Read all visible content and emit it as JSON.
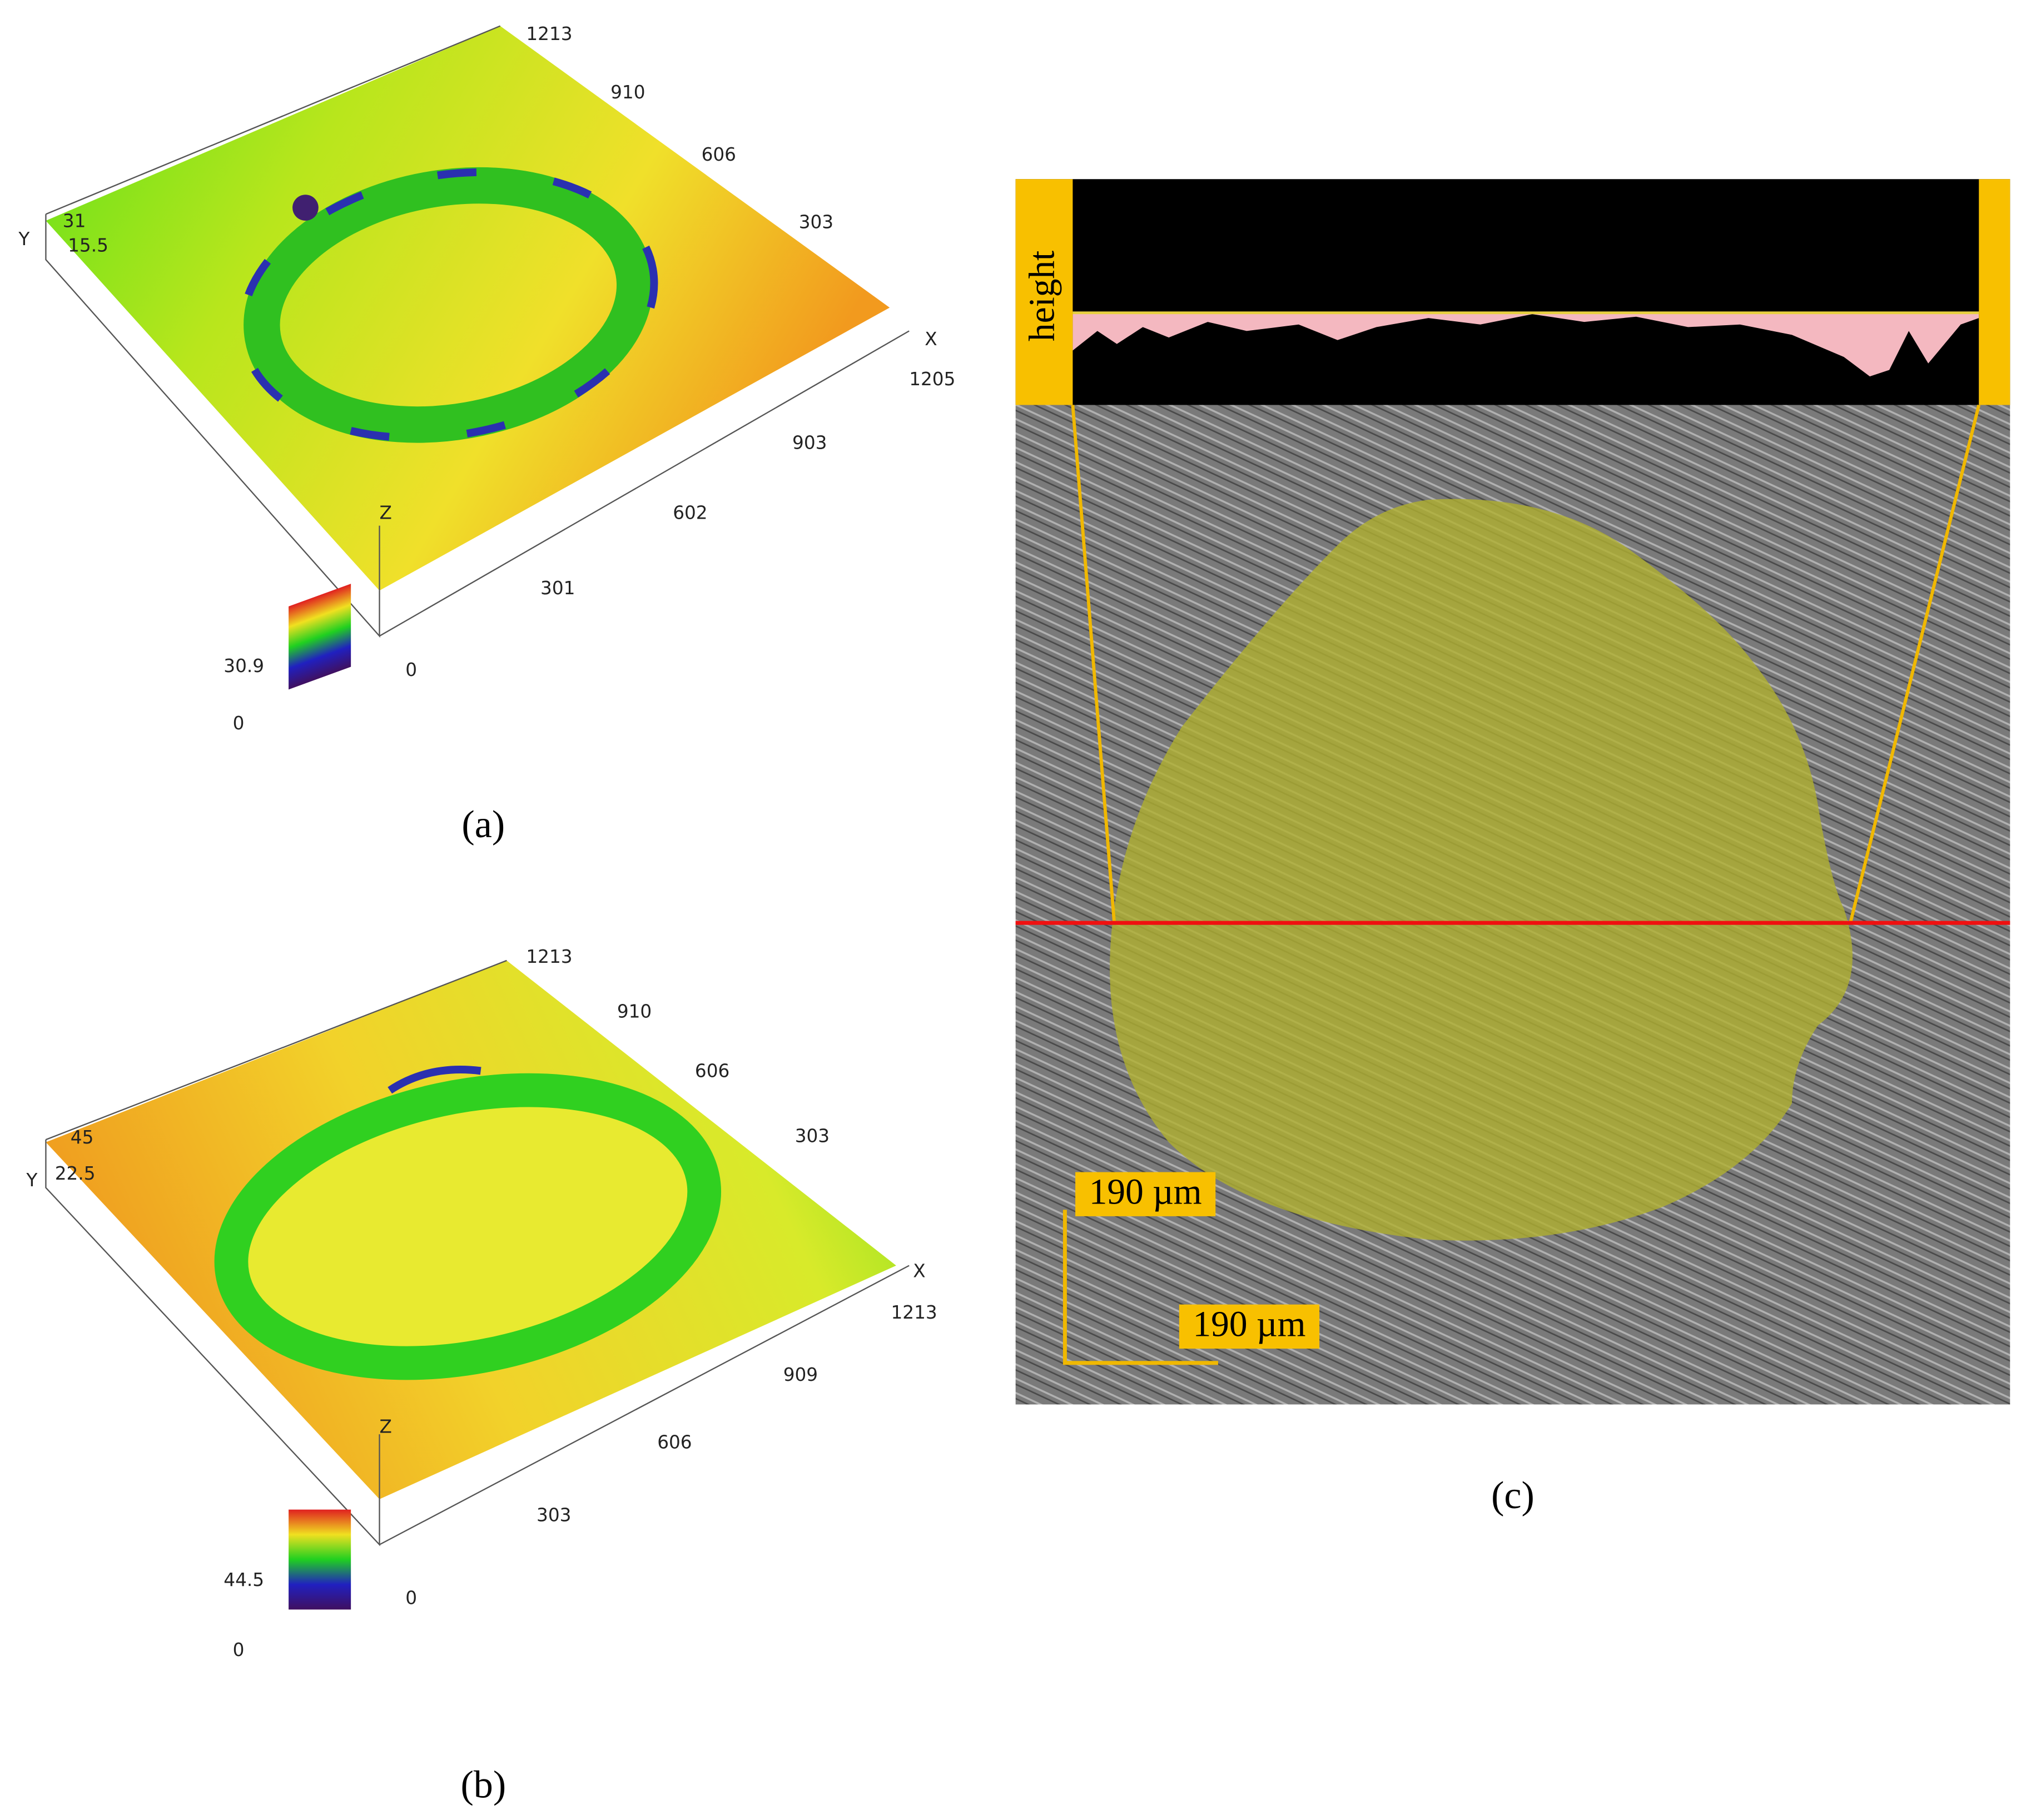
{
  "panels": [
    {
      "label": "(a)",
      "y_axis": "Y",
      "x_axis": "X",
      "z_axis": "Z",
      "y_ticks": [
        31,
        15.5
      ],
      "back_ticks": [
        1213,
        910,
        606,
        303
      ],
      "x_ticks": [
        1205,
        903,
        602,
        301,
        0
      ],
      "colorbar": [
        30.9,
        0
      ]
    },
    {
      "label": "(b)",
      "y_axis": "Y",
      "x_axis": "X",
      "z_axis": "Z",
      "y_ticks": [
        45,
        22.5
      ],
      "back_ticks": [
        1213,
        910,
        606,
        303
      ],
      "x_ticks": [
        1213,
        909,
        606,
        303,
        0
      ],
      "colorbar": [
        44.5,
        0
      ]
    },
    {
      "label": "(c)",
      "profile_label": "height",
      "scale_bars": [
        "190 µm",
        "190 µm"
      ]
    }
  ]
}
